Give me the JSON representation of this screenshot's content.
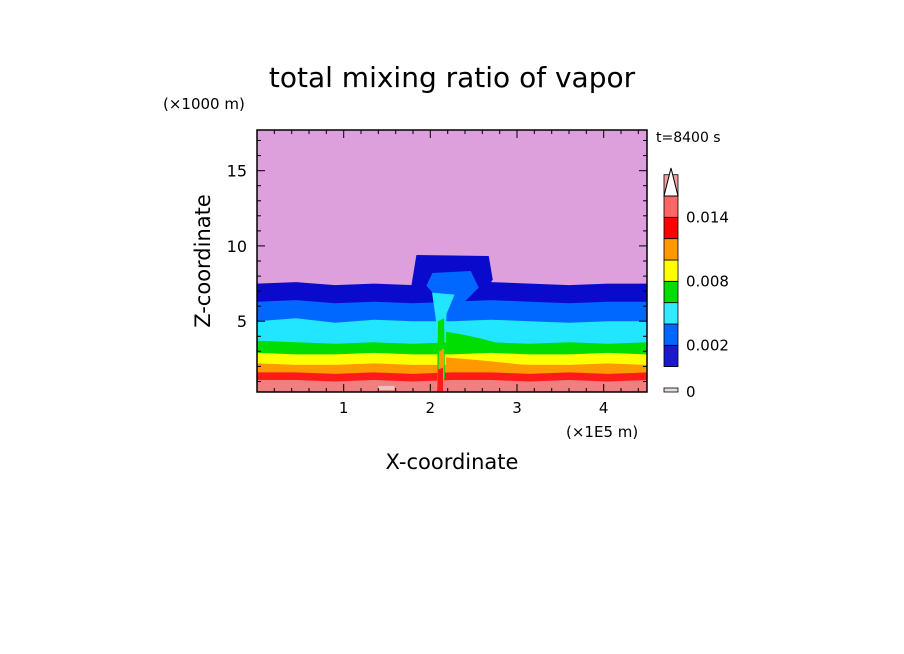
{
  "chart_data": {
    "type": "heatmap",
    "title": "total mixing ratio of vapor",
    "xlabel": "X-coordinate",
    "ylabel": "Z-coordinate",
    "x_unit": "(×1E5 m)",
    "y_unit": "(×1000 m)",
    "time_label": "t=8400 s",
    "xlim": [
      0,
      4.5
    ],
    "ylim": [
      0.3,
      17.7
    ],
    "x_ticks": [
      1,
      2,
      3,
      4
    ],
    "y_ticks": [
      5,
      10,
      15
    ],
    "colorbar": {
      "tick_labels": [
        "0",
        "0.002",
        "0.008",
        "0.014"
      ],
      "tick_values": [
        0,
        0.002,
        0.008,
        0.014
      ],
      "levels": [
        0,
        0.0001,
        0.001,
        0.002,
        0.004,
        0.006,
        0.008,
        0.01,
        0.012,
        0.014,
        0.016
      ],
      "colors": [
        "#e8d8ea",
        "#1a1acc",
        "#0066ff",
        "#33e8ff",
        "#00dd00",
        "#ffff00",
        "#ff9900",
        "#ff0000",
        "#ff6666",
        "#f2a0a0"
      ],
      "extend": "max"
    },
    "background_color": "#dda0dd",
    "layers": [
      {
        "value": 0.0001,
        "color": "#0a0acc",
        "top_z": [
          7.5,
          7.6,
          7.4,
          7.5,
          7.4,
          7.5,
          7.6,
          7.5,
          7.4,
          7.5,
          7.5
        ]
      },
      {
        "value": 0.001,
        "color": "#0068ff",
        "top_z": [
          6.3,
          6.4,
          6.2,
          6.3,
          6.2,
          6.3,
          6.4,
          6.3,
          6.2,
          6.3,
          6.3
        ]
      },
      {
        "value": 0.002,
        "color": "#22e5ff",
        "top_z": [
          5.0,
          5.2,
          4.9,
          5.1,
          5.0,
          5.0,
          5.1,
          5.0,
          4.9,
          5.0,
          5.0
        ]
      },
      {
        "value": 0.004,
        "color": "#00dd00",
        "top_z": [
          3.7,
          3.6,
          3.5,
          3.6,
          3.5,
          3.6,
          3.6,
          3.5,
          3.6,
          3.5,
          3.6
        ]
      },
      {
        "value": 0.006,
        "color": "#ffff00",
        "top_z": [
          2.9,
          2.8,
          2.8,
          2.9,
          2.8,
          2.8,
          2.9,
          2.8,
          2.8,
          2.9,
          2.8
        ]
      },
      {
        "value": 0.008,
        "color": "#ff9900",
        "top_z": [
          2.2,
          2.1,
          2.1,
          2.2,
          2.1,
          2.1,
          2.2,
          2.1,
          2.1,
          2.2,
          2.1
        ]
      },
      {
        "value": 0.01,
        "color": "#ff1a1a",
        "top_z": [
          1.6,
          1.6,
          1.5,
          1.6,
          1.5,
          1.6,
          1.6,
          1.5,
          1.6,
          1.5,
          1.6
        ]
      },
      {
        "value": 0.012,
        "color": "#f08080",
        "top_z": [
          1.1,
          1.1,
          1.0,
          1.1,
          1.0,
          1.1,
          1.1,
          1.0,
          1.1,
          1.0,
          1.1
        ]
      }
    ],
    "layers_x": [
      0,
      0.45,
      0.9,
      1.35,
      1.8,
      2.25,
      2.7,
      3.15,
      3.6,
      4.05,
      4.5
    ],
    "anvil": {
      "x_left": 1.77,
      "x_right": 2.72,
      "z_bottom": 7.5,
      "z_top": 9.4,
      "color": "#0a0acc"
    },
    "updraft_core": {
      "x_left": 2.02,
      "x_right": 2.28,
      "z_top": 6.9,
      "color": "#22e5ff"
    }
  }
}
